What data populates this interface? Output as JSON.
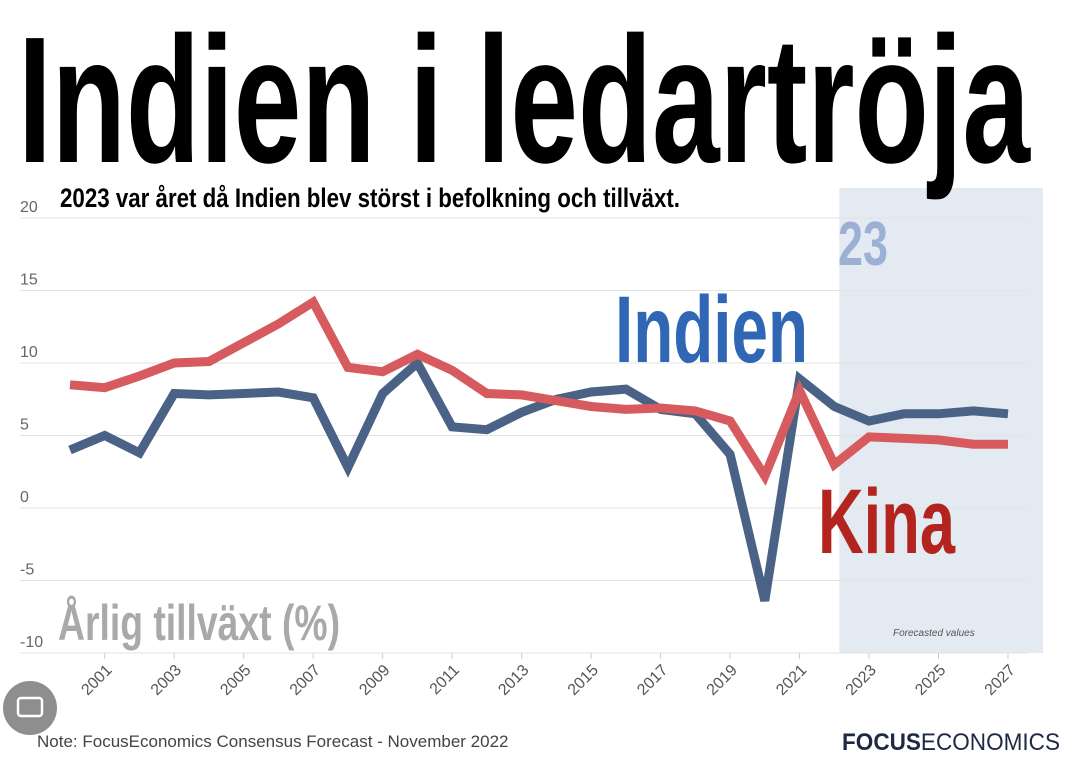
{
  "chart_data": {
    "type": "line",
    "title": "Indien i ledartröja",
    "subtitle": "2023 var året då Indien blev störst i befolkning och tillväxt.",
    "y_axis_label": "Årlig tillväxt (%)",
    "annotations": [
      "Indien",
      "Kina",
      "23"
    ],
    "forecast_label": "Forecasted values",
    "forecast_from": 2022,
    "note": "Note: FocusEconomics Consensus Forecast - November 2022",
    "logo": [
      "FOCUS",
      "ECONOMICS"
    ],
    "x": [
      2000,
      2001,
      2002,
      2003,
      2004,
      2005,
      2006,
      2007,
      2008,
      2009,
      2010,
      2011,
      2012,
      2013,
      2014,
      2015,
      2016,
      2017,
      2018,
      2019,
      2020,
      2021,
      2022,
      2023,
      2024,
      2025,
      2026,
      2027
    ],
    "series": [
      {
        "name": "Indien",
        "color": "#4a6285",
        "values": [
          4.0,
          5.0,
          3.8,
          7.9,
          7.8,
          7.9,
          8.0,
          7.6,
          2.8,
          7.9,
          10.0,
          5.6,
          5.4,
          6.6,
          7.5,
          8.0,
          8.2,
          6.8,
          6.5,
          3.7,
          -6.4,
          8.9,
          7.0,
          6.0,
          6.5,
          6.5,
          6.7,
          6.5
        ]
      },
      {
        "name": "Kina",
        "color": "#d65a5e",
        "values": [
          8.5,
          8.3,
          9.1,
          10.0,
          10.1,
          11.4,
          12.7,
          14.2,
          9.7,
          9.4,
          10.6,
          9.5,
          7.9,
          7.8,
          7.4,
          7.0,
          6.8,
          6.9,
          6.7,
          6.0,
          2.2,
          8.1,
          3.0,
          4.9,
          4.8,
          4.7,
          4.4,
          4.4
        ]
      }
    ],
    "xlim": [
      2000,
      2027
    ],
    "xticks": [
      2001,
      2003,
      2005,
      2007,
      2009,
      2011,
      2013,
      2015,
      2017,
      2019,
      2021,
      2023,
      2025,
      2027
    ],
    "ylim": [
      -10,
      20
    ],
    "yticks": [
      -10,
      -5,
      0,
      5,
      10,
      15,
      20
    ],
    "grid": true
  }
}
